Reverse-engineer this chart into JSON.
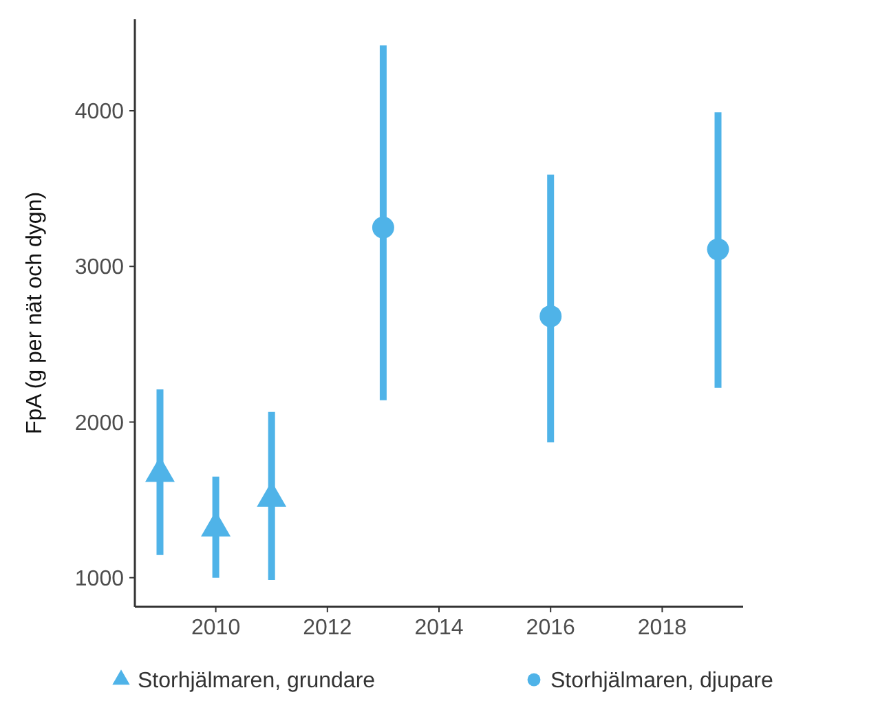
{
  "chart_data": {
    "type": "scatter",
    "ylabel": "FpA (g per nät och dygn)",
    "xlim": [
      2008.55,
      2019.45
    ],
    "xticks": [
      2010,
      2012,
      2014,
      2016,
      2018
    ],
    "ylim": [
      813,
      4588
    ],
    "yticks": [
      1000,
      2000,
      3000,
      4000
    ],
    "grid": false,
    "legend": "bottom",
    "series": [
      {
        "name": "Storhjälmaren, grundare",
        "color": "#4fb3e8",
        "marker": "triangle",
        "x": [
          2009,
          2010,
          2011
        ],
        "values": [
          1670,
          1320,
          1510
        ],
        "errors": [
          [
            1146,
            2210
          ],
          [
            1000,
            1650
          ],
          [
            985,
            2065
          ]
        ]
      },
      {
        "name": "Storhjälmaren, djupare",
        "color": "#4fb3e8",
        "marker": "circle",
        "x": [
          2013,
          2016,
          2019
        ],
        "values": [
          3250,
          2680,
          3110
        ],
        "errors": [
          [
            2140,
            4420
          ],
          [
            1870,
            3590
          ],
          [
            2220,
            3990
          ]
        ]
      }
    ]
  }
}
